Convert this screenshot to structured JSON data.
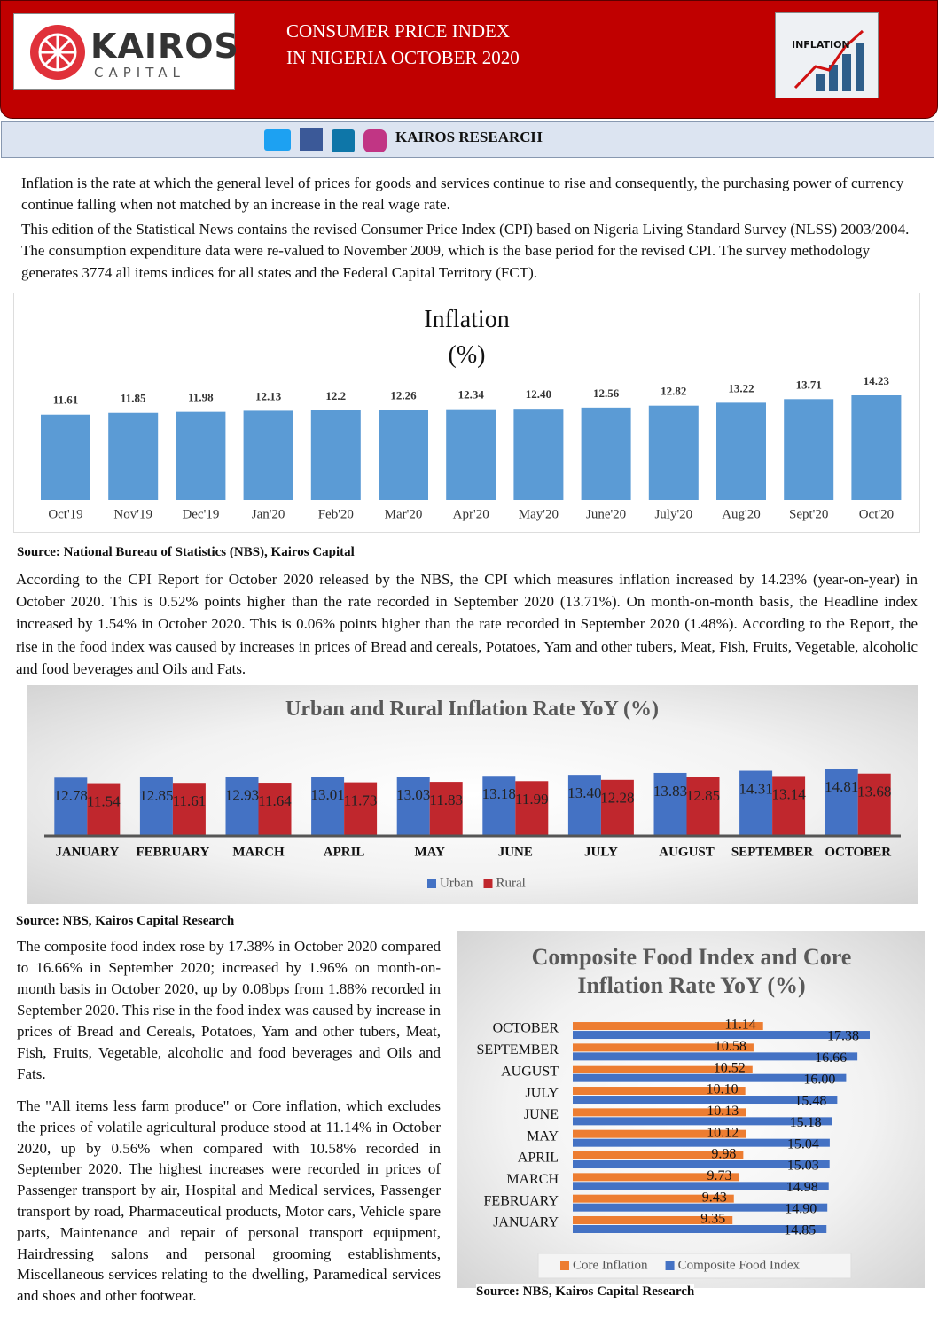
{
  "header": {
    "logo_name": "KAIROS",
    "logo_sub": "CAPITAL",
    "title_line1": "CONSUMER PRICE INDEX",
    "title_line2": "IN NIGERIA OCTOBER 2020",
    "image_text": "INFLATION"
  },
  "social_bar": {
    "label": "KAIROS RESEARCH"
  },
  "intro": [
    "Inflation is the rate at which the general level of prices for goods and services continue to rise and consequently, the purchasing power of currency continue falling when not matched by an increase in the real wage rate.",
    "This edition of the Statistical News contains the revised Consumer Price Index (CPI) based on Nigeria Living Standard Survey (NLSS) 2003/2004.  The consumption expenditure data were re-valued to November 2009, which is the base period for the revised CPI. The survey methodology generates 3774 all items indices for all states and the Federal Capital Territory (FCT)."
  ],
  "chart_data": [
    {
      "type": "bar",
      "title": "Inflation",
      "subtitle": "(%)",
      "categories": [
        "Oct'19",
        "Nov'19",
        "Dec'19",
        "Jan'20",
        "Feb'20",
        "Mar'20",
        "Apr'20",
        "May'20",
        "June'20",
        "July'20",
        "Aug'20",
        "Sept'20",
        "Oct'20"
      ],
      "values": [
        11.61,
        11.85,
        11.98,
        12.13,
        12.2,
        12.26,
        12.34,
        12.4,
        12.56,
        12.82,
        13.22,
        13.71,
        14.23
      ],
      "value_labels": [
        "11.61",
        "11.85",
        "11.98",
        "12.13",
        "12.2",
        "12.26",
        "12.34",
        "12.40",
        "12.56",
        "12.82",
        "13.22",
        "13.71",
        "14.23"
      ],
      "color": "#5b9bd5"
    },
    {
      "type": "bar",
      "title": "Urban and Rural Inflation Rate YoY (%)",
      "legend": "bottom",
      "categories": [
        "JANUARY",
        "FEBRUARY",
        "MARCH",
        "APRIL",
        "MAY",
        "JUNE",
        "JULY",
        "AUGUST",
        "SEPTEMBER",
        "OCTOBER"
      ],
      "series": [
        {
          "name": "Urban",
          "color": "#4472c4",
          "values": [
            12.78,
            12.85,
            12.93,
            13.01,
            13.03,
            13.18,
            13.4,
            13.83,
            14.31,
            14.81
          ],
          "value_labels": [
            "12.78",
            "12.85",
            "12.93",
            "13.01",
            "13.03",
            "13.18",
            "13.40",
            "13.83",
            "14.31",
            "14.81"
          ]
        },
        {
          "name": "Rural",
          "color": "#c0272d",
          "values": [
            11.54,
            11.61,
            11.64,
            11.73,
            11.83,
            11.99,
            12.28,
            12.85,
            13.14,
            13.68
          ],
          "value_labels": [
            "11.54",
            "11.61",
            "11.64",
            "11.73",
            "11.83",
            "11.99",
            "12.28",
            "12.85",
            "13.14",
            "13.68"
          ]
        }
      ]
    },
    {
      "type": "barh",
      "title": "Composite Food Index and Core Inflation Rate YoY (%)",
      "legend": "bottom",
      "categories": [
        "JANUARY",
        "FEBRUARY",
        "MARCH",
        "APRIL",
        "MAY",
        "JUNE",
        "JULY",
        "AUGUST",
        "SEPTEMBER",
        "OCTOBER"
      ],
      "series": [
        {
          "name": "Core Inflation",
          "color": "#ed7d31",
          "values": [
            9.35,
            9.43,
            9.73,
            9.98,
            10.12,
            10.13,
            10.1,
            10.52,
            10.58,
            11.14
          ],
          "value_labels": [
            "9.35",
            "9.43",
            "9.73",
            "9.98",
            "10.12",
            "10.13",
            "10.10",
            "10.52",
            "10.58",
            "11.14"
          ]
        },
        {
          "name": "Composite Food Index",
          "color": "#4472c4",
          "values": [
            14.85,
            14.9,
            14.98,
            15.03,
            15.04,
            15.18,
            15.48,
            16.0,
            16.66,
            17.38
          ],
          "value_labels": [
            "14.85",
            "14.90",
            "14.98",
            "15.03",
            "15.04",
            "15.18",
            "15.48",
            "16.00",
            "16.66",
            "17.38"
          ]
        }
      ]
    }
  ],
  "sources": [
    "Source: National Bureau of Statistics (NBS), Kairos Capital",
    "Source: NBS, Kairos Capital Research",
    "Source: NBS, Kairos Capital Research"
  ],
  "body": [
    "According to the CPI Report for October 2020 released by the NBS, the CPI which measures inflation increased by 14.23% (year-on-year) in October 2020. This is 0.52% points higher than the rate recorded in September 2020 (13.71%). On month-on-month basis, the Headline index increased by 1.54% in October 2020. This is 0.06% points higher than the rate recorded in September 2020 (1.48%). According to the Report, the rise in the food index was caused by increases in prices of Bread and cereals, Potatoes, Yam and other tubers, Meat, Fish, Fruits, Vegetable, alcoholic and food beverages and Oils and Fats.",
    "The composite food index rose by 17.38% in October 2020 compared to 16.66% in September 2020; increased by 1.96% on month-on-month basis in October 2020, up by 0.08bps from 1.88% recorded in September 2020. This rise in the food index was caused by increase in prices of Bread and Cereals, Potatoes, Yam and other tubers, Meat, Fish, Fruits, Vegetable, alcoholic and food beverages and Oils and Fats.",
    "The \"All items less farm produce\" or Core inflation, which excludes the prices of volatile agricultural produce stood at 11.14% in October 2020, up by 0.56% when compared with 10.58% recorded in September 2020. The highest increases were recorded in prices of Passenger transport by air, Hospital and Medical services, Passenger transport by road, Pharmaceutical products, Motor cars, Vehicle spare parts, Maintenance and repair of personal transport equipment, Hairdressing salons and personal grooming establishments, Miscellaneous services relating to the dwelling, Paramedical services and shoes and other footwear."
  ]
}
